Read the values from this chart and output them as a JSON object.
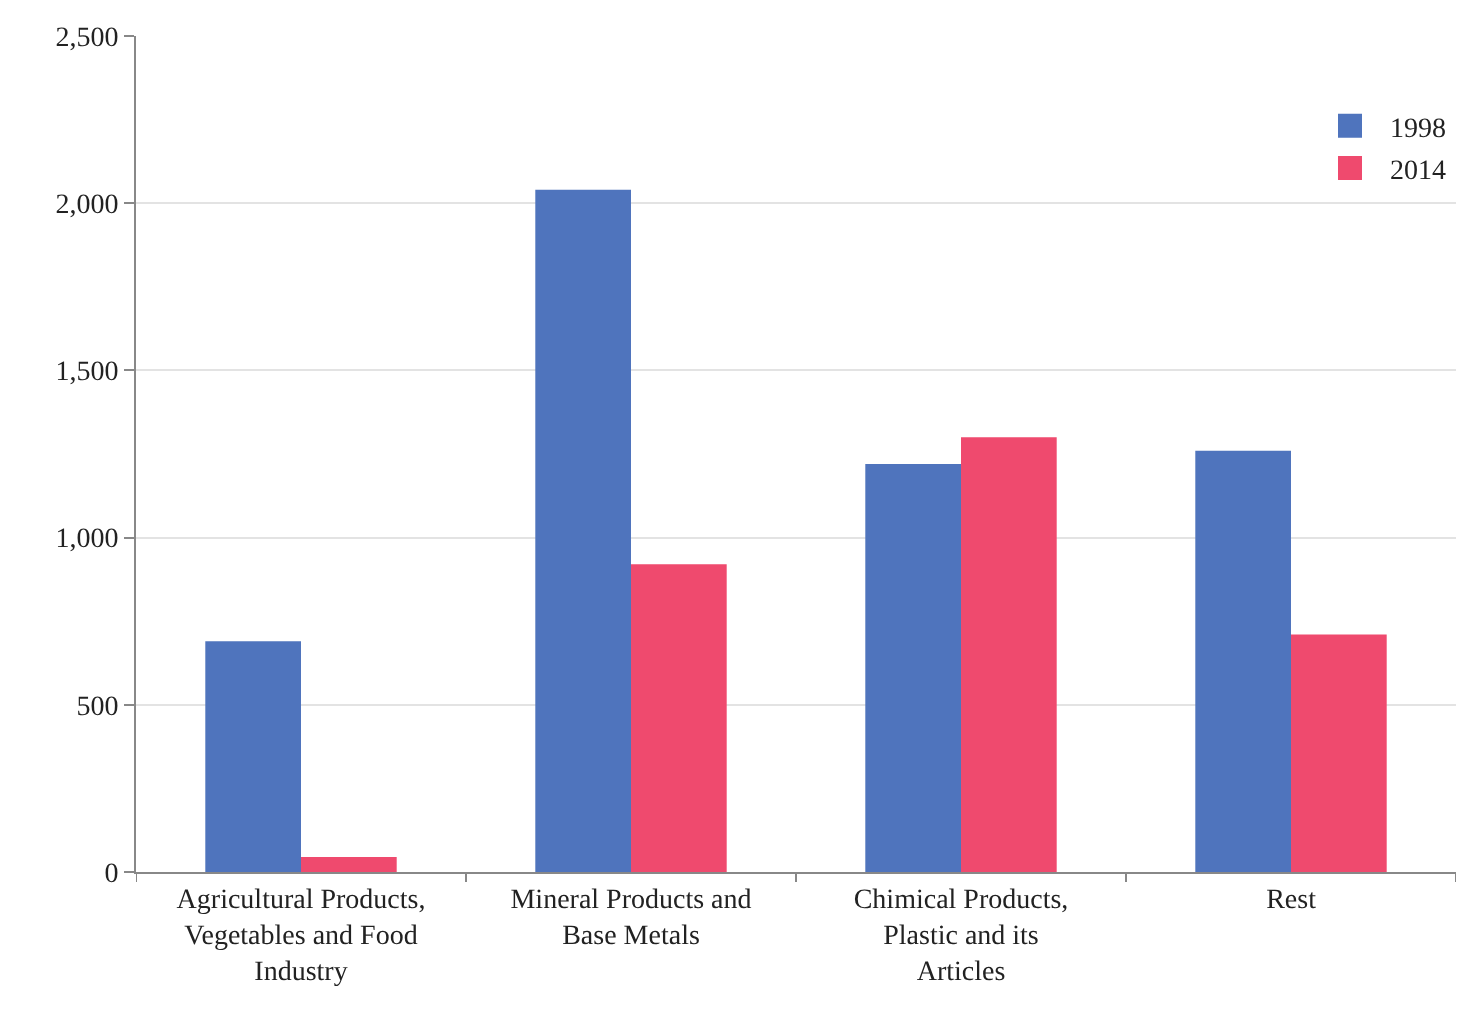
{
  "chart_data": {
    "type": "bar",
    "categories": [
      "Agricultural Products, Vegetables and Food Industry",
      "Mineral Products and Base Metals",
      "Chimical Products, Plastic and its Articles",
      "Rest"
    ],
    "series": [
      {
        "name": "1998",
        "color": "#4f74bd",
        "values": [
          690,
          2040,
          1220,
          1260
        ]
      },
      {
        "name": "2014",
        "color": "#ef4a6e",
        "values": [
          45,
          920,
          1300,
          710
        ]
      }
    ],
    "ylim": [
      0,
      2500
    ],
    "yticks": [
      {
        "value": 0,
        "label": "0"
      },
      {
        "value": 500,
        "label": "500"
      },
      {
        "value": 1000,
        "label": "1,000"
      },
      {
        "value": 1500,
        "label": "1,500"
      },
      {
        "value": 2000,
        "label": "2,000"
      },
      {
        "value": 2500,
        "label": "2,500"
      }
    ],
    "grid": "y",
    "legend": "top right"
  }
}
